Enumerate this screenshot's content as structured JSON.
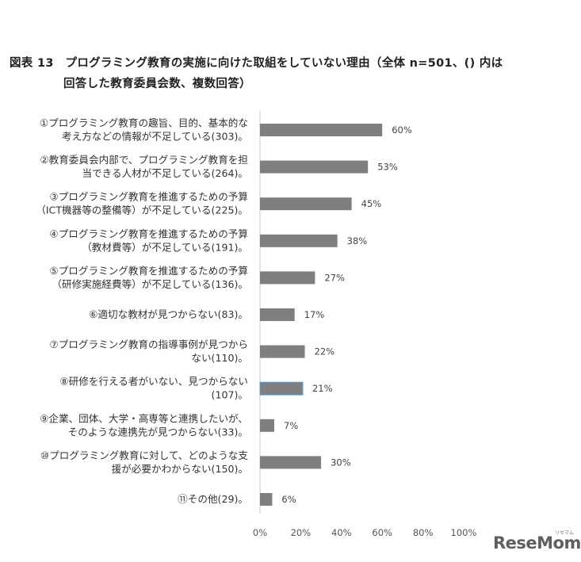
{
  "chart_data": {
    "type": "bar",
    "orientation": "horizontal",
    "title_line1": "図表 13　プログラミング教育の実施に向けた取組をしていない理由（全体 n=501、() 内は",
    "title_line2": "回答した教育委員会数、複数回答）",
    "categories": [
      [
        "①プログラミング教育の趣旨、目的、基本的な",
        "考え方などの情報が不足している(303)。"
      ],
      [
        "②教育委員会内部で、プログラミング教育を担",
        "当できる人材が不足している(264)。"
      ],
      [
        "③プログラミング教育を推進するための予算",
        "（ICT機器等の整備等）が不足している(225)。"
      ],
      [
        "④プログラミング教育を推進するための予算",
        "（教材費等）が不足している(191)。"
      ],
      [
        "⑤プログラミング教育を推進するための予算",
        "（研修実施経費等）が不足している(136)。"
      ],
      [
        "⑥適切な教材が見つからない(83)。"
      ],
      [
        "⑦プログラミング教育の指導事例が見つから",
        "ない(110)。"
      ],
      [
        "⑧研修を行える者がいない、見つからない",
        "(107)。"
      ],
      [
        "⑨企業、団体、大学・高専等と連携したいが、",
        "そのような連携先が見つからない(33)。"
      ],
      [
        "⑩プログラミング教育に対して、どのような支",
        "援が必要かわからない(150)。"
      ],
      [
        "⑪その他(29)。"
      ]
    ],
    "values": [
      60,
      53,
      45,
      38,
      27,
      17,
      22,
      21,
      7,
      30,
      6
    ],
    "value_labels": [
      "60%",
      "53%",
      "45%",
      "38%",
      "27%",
      "17%",
      "22%",
      "21%",
      "7%",
      "30%",
      "6%"
    ],
    "xlim": [
      0,
      100
    ],
    "xticks": [
      "0%",
      "20%",
      "40%",
      "60%",
      "80%",
      "100%"
    ],
    "grid": false,
    "bar_color": "#7f7f7f",
    "highlight_index": 7,
    "highlight_outline": "#5b9bd5"
  },
  "watermark": {
    "text": "ReseMom",
    "sub": "リセマム"
  }
}
